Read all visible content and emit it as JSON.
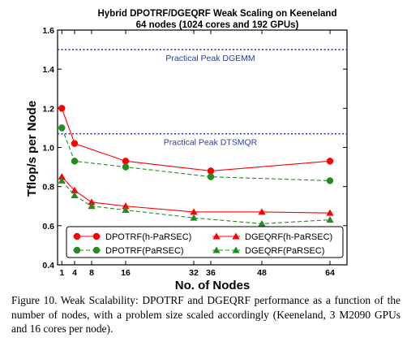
{
  "chart_data": {
    "type": "line",
    "title": "Hybrid DPOTRF/DGEQRF Weak Scaling on Keeneland",
    "subtitle": "64 nodes (1024 cores and 192 GPUs)",
    "xlabel": "No. of Nodes",
    "ylabel": "Tflop/s per Node",
    "xlim": [
      0,
      68
    ],
    "ylim": [
      0.4,
      1.6
    ],
    "xticks": [
      1,
      4,
      8,
      16,
      32,
      36,
      48,
      64
    ],
    "yticks": [
      "0.4",
      "0.6",
      "0.8",
      "1.0",
      "1.2",
      "1.4",
      "1.6"
    ],
    "grid": false,
    "legend_position": "bottom-center",
    "reference_lines": [
      {
        "label": "Practical Peak DGEMM",
        "y": 1.5,
        "color": "#2a3f9a"
      },
      {
        "label": "Practical Peak DTSMQR",
        "y": 1.07,
        "color": "#2a3f9a"
      }
    ],
    "series": [
      {
        "name": "DPOTRF(h-PaRSEC)",
        "color": "#ff0000",
        "marker": "circle",
        "dash": "solid",
        "x": [
          1,
          4,
          16,
          36,
          64
        ],
        "y": [
          1.2,
          1.02,
          0.93,
          0.88,
          0.93
        ]
      },
      {
        "name": "DPOTRF(PaRSEC)",
        "color": "#228b22",
        "marker": "circle",
        "dash": "dashed",
        "x": [
          1,
          4,
          16,
          36,
          64
        ],
        "y": [
          1.1,
          0.93,
          0.9,
          0.85,
          0.83
        ]
      },
      {
        "name": "DGEQRF(h-PaRSEC)",
        "color": "#ff0000",
        "marker": "triangle",
        "dash": "solid",
        "x": [
          1,
          4,
          8,
          16,
          32,
          48,
          64
        ],
        "y": [
          0.85,
          0.78,
          0.72,
          0.7,
          0.67,
          0.67,
          0.665
        ]
      },
      {
        "name": "DGEQRF(PaRSEC)",
        "color": "#228b22",
        "marker": "triangle",
        "dash": "dashed",
        "x": [
          1,
          4,
          8,
          16,
          32,
          48,
          64
        ],
        "y": [
          0.83,
          0.755,
          0.7,
          0.68,
          0.64,
          0.61,
          0.63
        ]
      }
    ]
  },
  "caption": "Figure 10.   Weak Scalability: DPOTRF and DGEQRF performance as a function of the number of nodes, with a problem size scaled accordingly (Keeneland, 3 M2090 GPUs and 16 cores per node)."
}
